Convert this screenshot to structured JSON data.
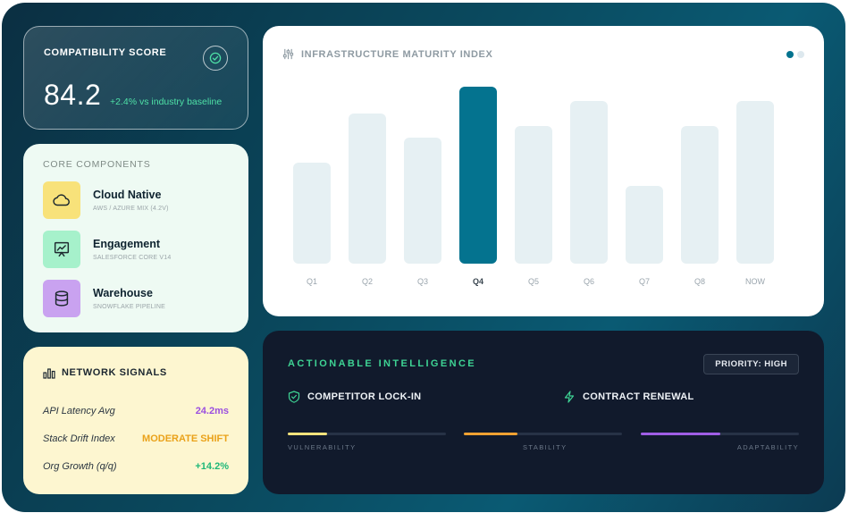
{
  "compat": {
    "title": "COMPATIBILITY SCORE",
    "score": "84.2",
    "delta": "+2.4% vs industry baseline"
  },
  "core": {
    "title": "CORE COMPONENTS",
    "items": [
      {
        "name": "Cloud Native",
        "sub": "AWS / AZURE MIX (4.2V)",
        "icon": "cloud-icon",
        "color": "#f8e27a"
      },
      {
        "name": "Engagement",
        "sub": "SALESFORCE CORE V14",
        "icon": "presentation-chart-icon",
        "color": "#a6f1cb"
      },
      {
        "name": "Warehouse",
        "sub": "SNOWFLAKE PIPELINE",
        "icon": "database-icon",
        "color": "#c9a2f0"
      }
    ]
  },
  "network": {
    "title": "NETWORK SIGNALS",
    "rows": [
      {
        "label": "API Latency Avg",
        "value": "24.2ms",
        "color": "#9b4fe0"
      },
      {
        "label": "Stack Drift Index",
        "value": "MODERATE SHIFT",
        "color": "#eaa21a"
      },
      {
        "label": "Org Growth (q/q)",
        "value": "+14.2%",
        "color": "#1fb878"
      }
    ]
  },
  "chart": {
    "title": "INFRASTRUCTURE MATURITY INDEX",
    "highlight_color": "#04738f",
    "base_color": "#e6f0f3"
  },
  "chart_data": {
    "type": "bar",
    "categories": [
      "Q1",
      "Q2",
      "Q3",
      "Q4",
      "Q5",
      "Q6",
      "Q7",
      "Q8",
      "NOW"
    ],
    "values": [
      0.57,
      0.85,
      0.71,
      1.0,
      0.78,
      0.92,
      0.44,
      0.78,
      0.92
    ],
    "highlighted": "Q4",
    "ylim": [
      0,
      1
    ],
    "grid": false,
    "legend": "none"
  },
  "actionable": {
    "title": "ACTIONABLE INTELLIGENCE",
    "priority": "PRIORITY: HIGH",
    "tags": [
      {
        "label": "COMPETITOR LOCK-IN",
        "icon": "shield-check-icon"
      },
      {
        "label": "CONTRACT RENEWAL",
        "icon": "lightning-icon"
      }
    ],
    "metrics": [
      {
        "label": "VULNERABILITY",
        "value": 0.25,
        "color": "#f4e27c"
      },
      {
        "label": "STABILITY",
        "value": 0.34,
        "color": "#f0a132"
      },
      {
        "label": "ADAPTABILITY",
        "value": 0.5,
        "color": "#a05ee6"
      }
    ]
  }
}
